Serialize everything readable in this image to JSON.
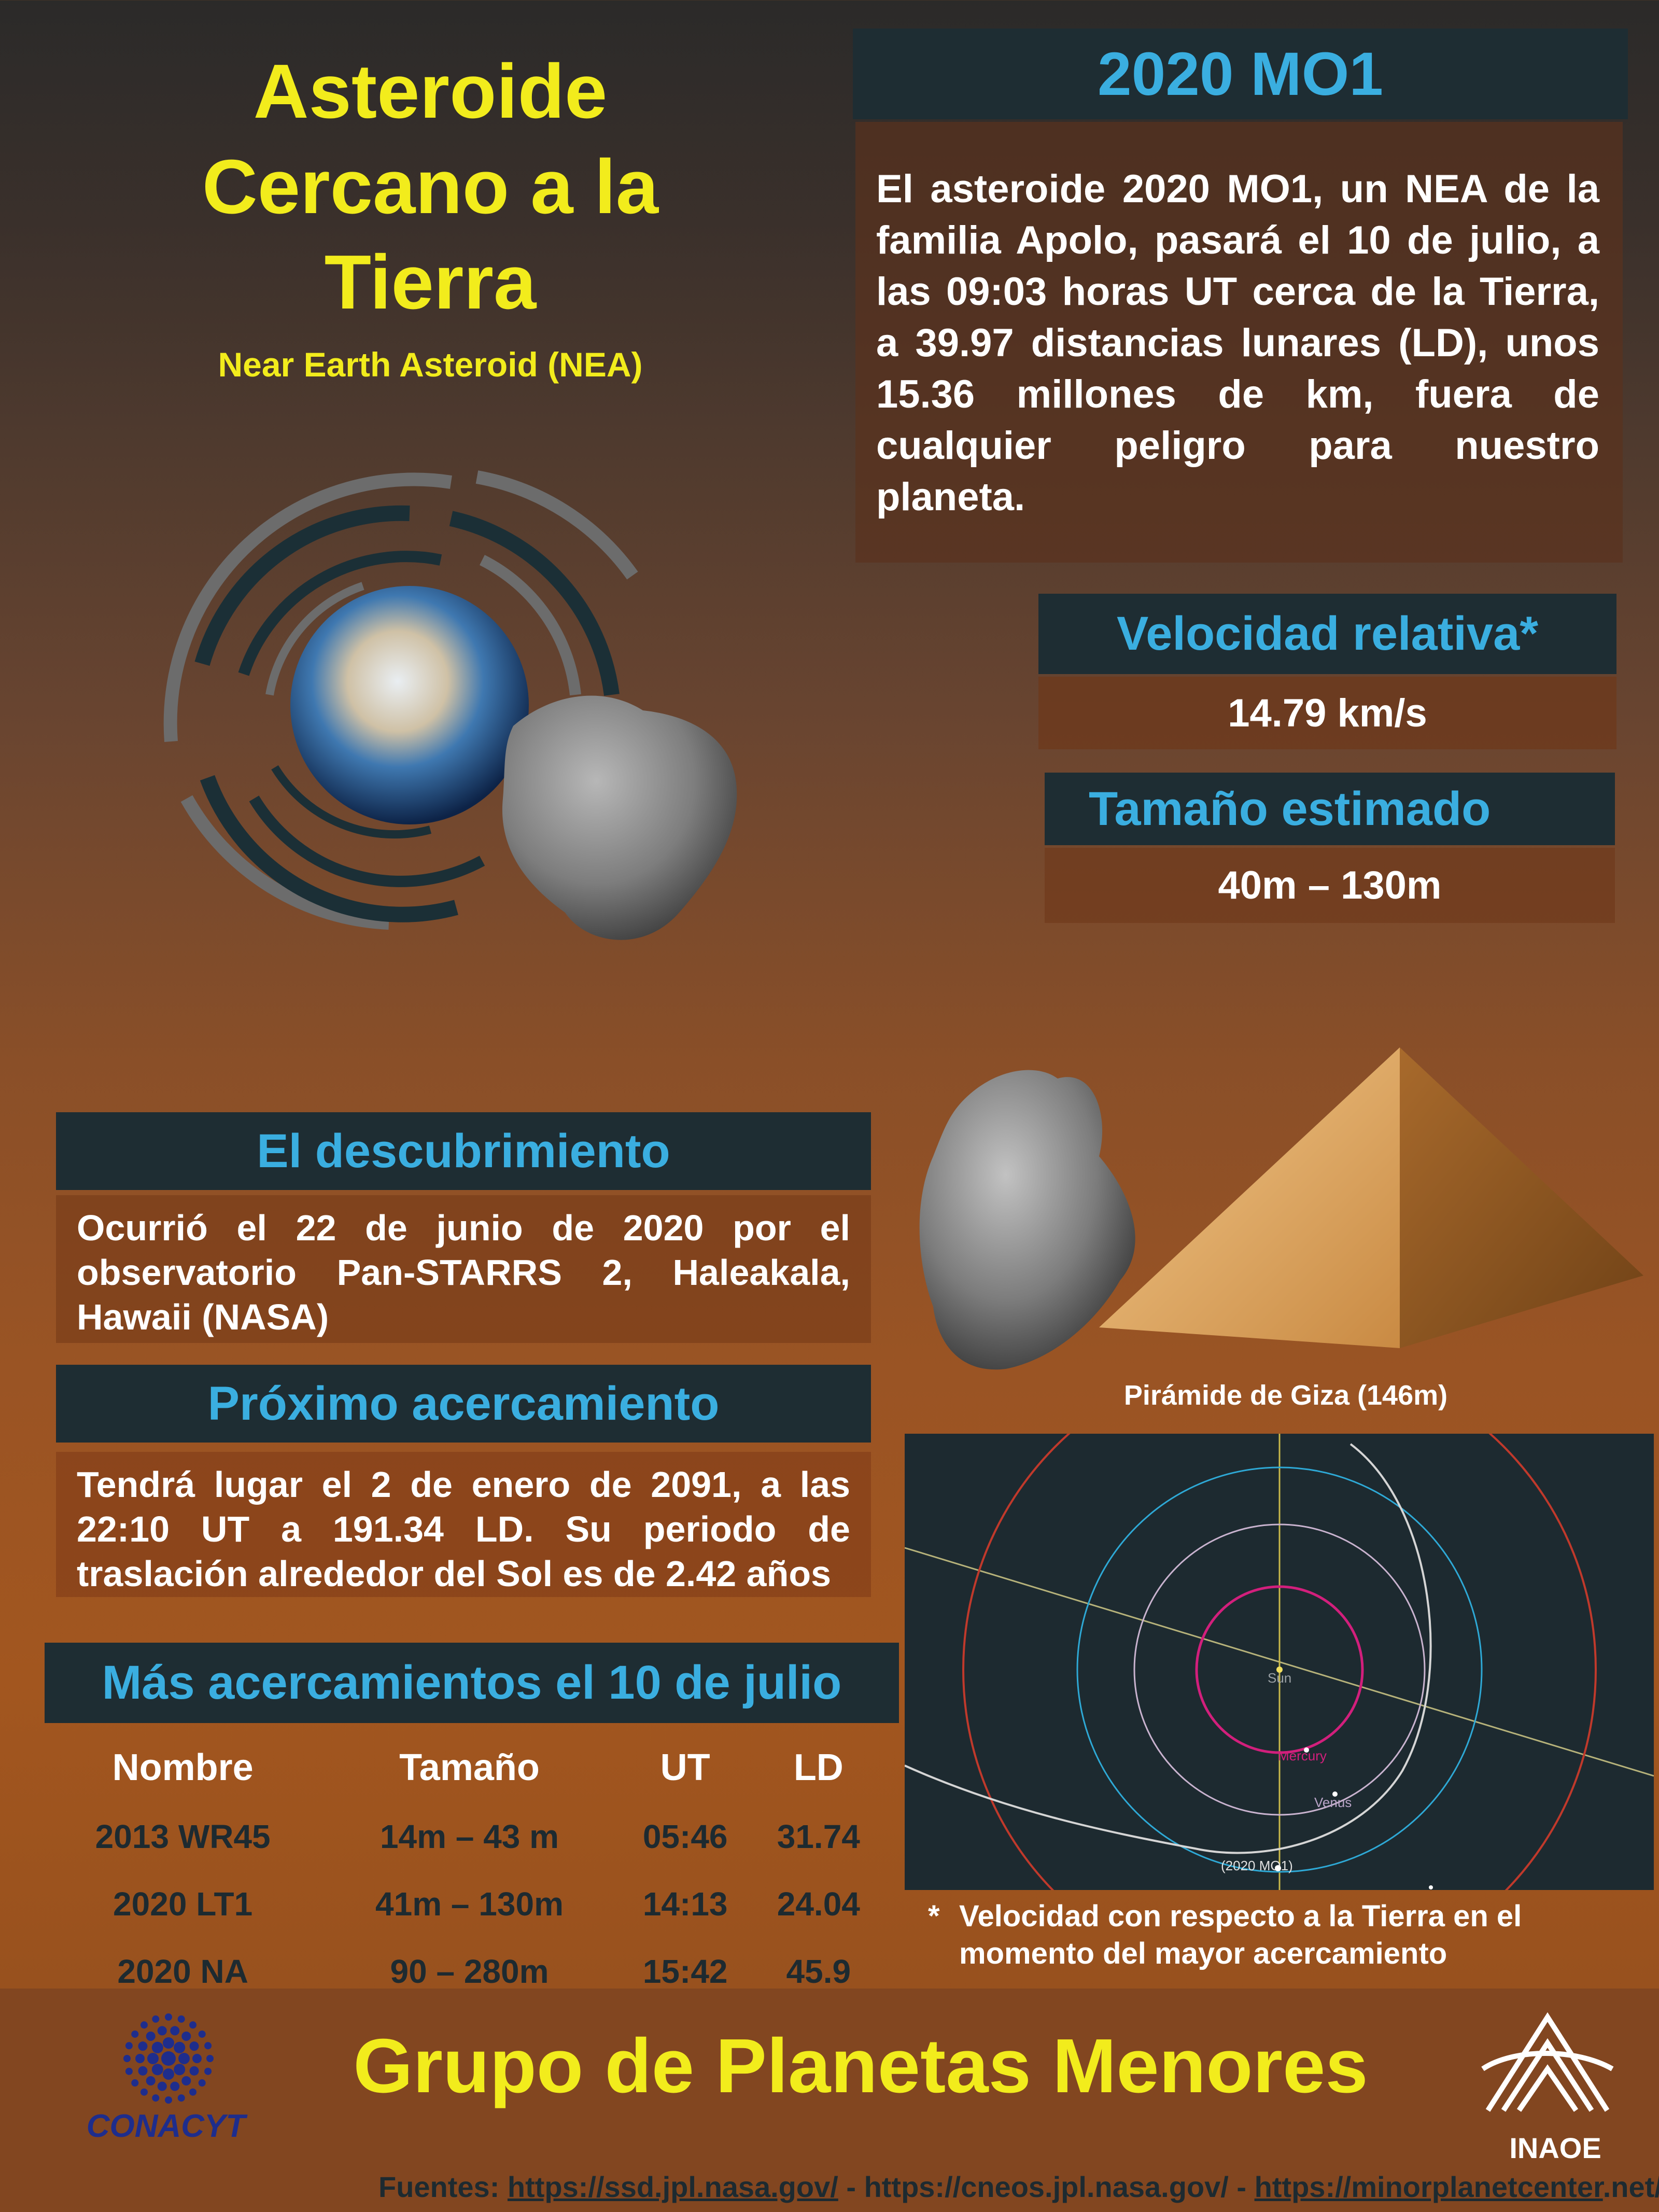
{
  "title": {
    "line1": "Asteroide",
    "line2": "Cercano a la",
    "line3": "Tierra",
    "subtitle": "Near Earth Asteroid (NEA)"
  },
  "mo1": {
    "heading": "2020 MO1",
    "body": "El asteroide 2020 MO1, un NEA de la familia Apolo, pasará el 10 de julio, a las 09:03 horas UT cerca de la Tierra, a 39.97 distancias lunares (LD), unos 15.36 millones de km, fuera de cualquier peligro para nuestro planeta."
  },
  "velocity": {
    "heading": "Velocidad relativa*",
    "value": "14.79 km/s"
  },
  "size": {
    "heading": "Tamaño estimado",
    "value": "40m – 130m"
  },
  "discovery": {
    "heading": "El descubrimiento",
    "body": "Ocurrió el 22 de junio de 2020 por el observatorio Pan-STARRS 2, Haleakala, Hawaii (NASA)"
  },
  "next": {
    "heading": "Próximo acercamiento",
    "body": "Tendrá lugar el 2 de enero de 2091, a las 22:10 UT a 191.34 LD. Su periodo de traslación alrededor del Sol es de 2.42 años"
  },
  "more": {
    "heading": "Más acercamientos el 10 de julio",
    "columns": [
      "Nombre",
      "Tamaño",
      "UT",
      "LD"
    ],
    "rows": [
      [
        "2013 WR45",
        "14m – 43 m",
        "05:46",
        "31.74"
      ],
      [
        "2020 LT1",
        "41m – 130m",
        "14:13",
        "24.04"
      ],
      [
        "2020 NA",
        "90 – 280m",
        "15:42",
        "45.9"
      ]
    ]
  },
  "giza_caption": "Pirámide de Giza (146m)",
  "orbit_labels": {
    "sun": "Sun",
    "mercury": "Mercury",
    "venus": "Venus",
    "asteroid": "(2020 MO1)"
  },
  "footnote": {
    "star": "*",
    "text": "Velocidad con respecto a la Tierra en el momento del mayor acercamiento"
  },
  "footer": {
    "group": "Grupo de Planetas Menores",
    "conacyt": "CONACYT",
    "inaoe": "INAOE",
    "sources_label": "Fuentes:",
    "source1": "https://ssd.jpl.nasa.gov/",
    "sep1": "-",
    "source2": "https://cneos.jpl.nasa.gov/",
    "sep2": "-",
    "source3": "https://minorplanetcenter",
    "source3_tail": ".net/"
  },
  "colors": {
    "yellow": "#f2ec1c",
    "cyan": "#3aaee0",
    "dark_bar": "#1e2d33"
  }
}
